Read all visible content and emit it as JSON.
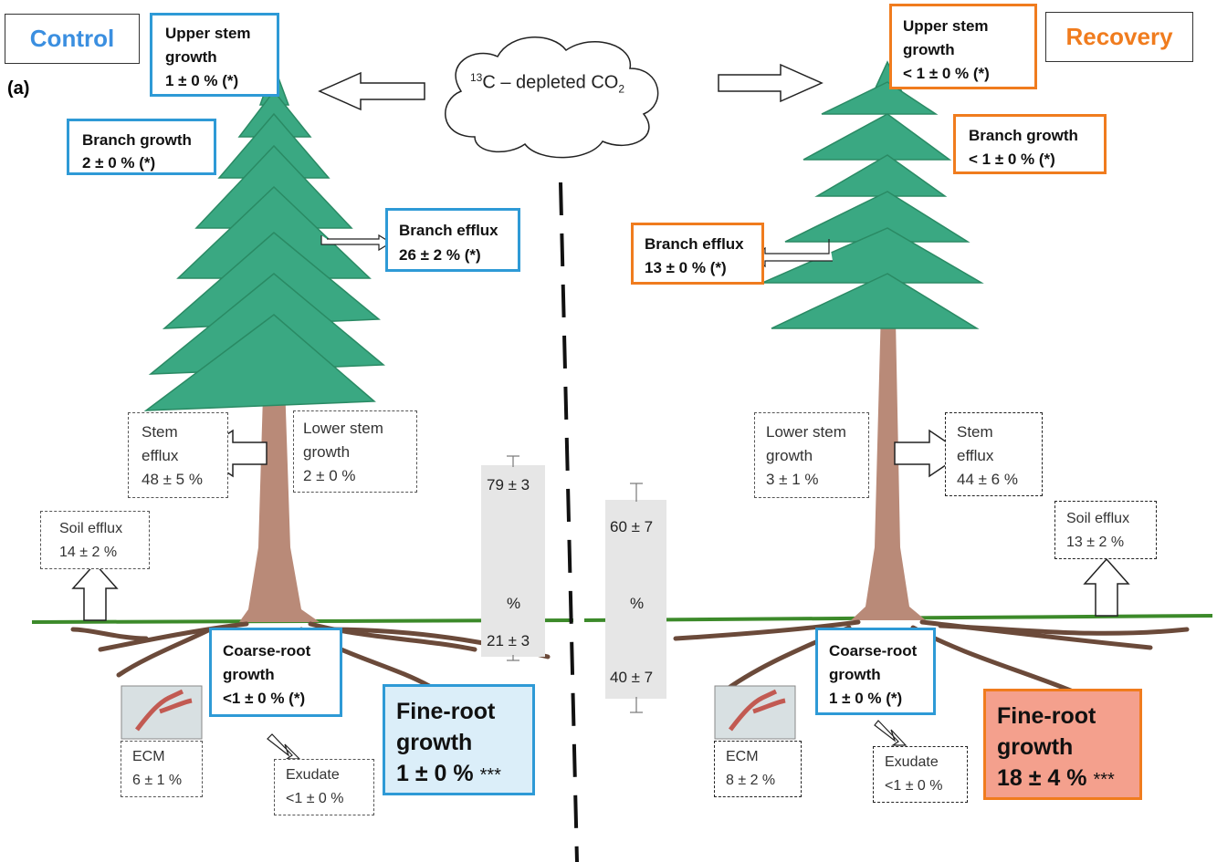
{
  "panel_label": "(a)",
  "cloud": {
    "sup": "13",
    "text": "C – depleted CO",
    "sub": "2"
  },
  "control": {
    "title": "Control",
    "upper_stem": [
      "Upper stem",
      "growth",
      "1 ± 0 % (*)"
    ],
    "branch_growth": [
      "Branch growth",
      "2 ± 0 % (*)"
    ],
    "branch_efflux": [
      "Branch efflux",
      "26 ± 2 % (*)"
    ],
    "stem_efflux": [
      "Stem",
      "efflux",
      "48 ± 5 %"
    ],
    "lower_stem": [
      "Lower stem",
      "growth",
      "2 ± 0 %"
    ],
    "soil_efflux": [
      "Soil efflux",
      "14 ± 2 %"
    ],
    "coarse_root": [
      "Coarse-root",
      "growth",
      "<1 ± 0 % (*)"
    ],
    "fine_root": [
      "Fine-root",
      "growth",
      "1 ± 0 %",
      "***"
    ],
    "ecm": [
      "ECM",
      "6 ± 1 %"
    ],
    "exudate": [
      "Exudate",
      "<1 ± 0 %"
    ],
    "bar": {
      "above": "79 ± 3",
      "unit": "%",
      "below": "21 ± 3"
    }
  },
  "recovery": {
    "title": "Recovery",
    "upper_stem": [
      "Upper stem",
      "growth",
      "< 1 ± 0 % (*)"
    ],
    "branch_growth": [
      "Branch growth",
      "< 1 ± 0 % (*)"
    ],
    "branch_efflux": [
      "Branch efflux",
      "13 ± 0 % (*)"
    ],
    "stem_efflux": [
      "Stem",
      "efflux",
      "44 ± 6 %"
    ],
    "lower_stem": [
      "Lower stem",
      "growth",
      "3 ± 1 %"
    ],
    "soil_efflux": [
      "Soil efflux",
      "13 ± 2 %"
    ],
    "coarse_root": [
      "Coarse-root",
      "growth",
      "1 ± 0 % (*)"
    ],
    "fine_root": [
      "Fine-root",
      "growth",
      "18 ± 4 %",
      "***"
    ],
    "ecm": [
      "ECM",
      "8 ± 2 %"
    ],
    "exudate": [
      "Exudate",
      "<1 ± 0 %"
    ],
    "bar": {
      "above": "60 ± 7",
      "unit": "%",
      "below": "40 ± 7"
    }
  },
  "colors": {
    "control": "#3b8fe0",
    "recovery": "#f07c1e",
    "ground": "#3c8a2a",
    "trunk": "#b98a78",
    "foliage": "#3aa882"
  }
}
